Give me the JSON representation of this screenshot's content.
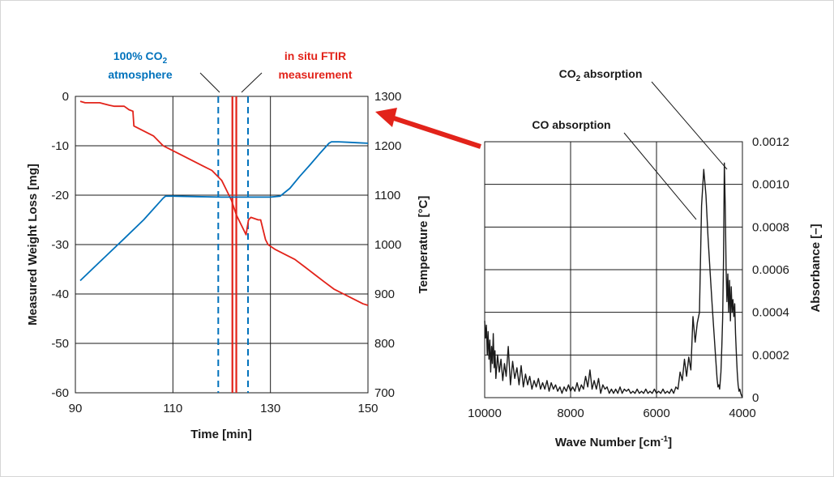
{
  "colors": {
    "weight": "#e2231a",
    "temperature": "#0072bc",
    "absorbance": "#1a1a1a",
    "arrow": "#e2231a",
    "grid": "#1a1a1a"
  },
  "chart_data": [
    {
      "type": "line",
      "xlabel": "Time [min]",
      "ylabel": "Measured Weight Loss [mg]",
      "y2label": "Temperature [°C]",
      "xlim": [
        90,
        150
      ],
      "ylim": [
        -60,
        0
      ],
      "y2lim": [
        700,
        1300
      ],
      "x_ticks": [
        "90",
        "110",
        "130",
        "150"
      ],
      "y_ticks": [
        "0",
        "-10",
        "-20",
        "-30",
        "-40",
        "-50",
        "-60"
      ],
      "y2_ticks": [
        "1300",
        "1200",
        "1100",
        "1000",
        "900",
        "800",
        "700"
      ],
      "grid": true,
      "annotations": {
        "co2_line1": "100% CO",
        "co2_sub": "2",
        "co2_line2": "atmosphere",
        "ftir_line1": "in situ FTIR",
        "ftir_line2": "measurement"
      },
      "co2_markers_x": [
        119.3,
        125.4
      ],
      "ftir_markers_x": [
        122.2,
        123.0
      ],
      "series": [
        {
          "axis": "left",
          "x": [
            91,
            92,
            94,
            95,
            97,
            98,
            100,
            101,
            101.8,
            102,
            104,
            106,
            107,
            108,
            110,
            112,
            114,
            116,
            118,
            120,
            121,
            122,
            123,
            124,
            125,
            125.5,
            126,
            127.5,
            128,
            129,
            129.5,
            131,
            133,
            135,
            137,
            139,
            141,
            143,
            145,
            147,
            149,
            150
          ],
          "y": [
            -1,
            -1.3,
            -1.3,
            -1.3,
            -1.8,
            -2,
            -2,
            -2.7,
            -3,
            -6,
            -7,
            -8,
            -9,
            -10,
            -11,
            -12,
            -13,
            -14,
            -15,
            -17,
            -19,
            -21,
            -24,
            -26,
            -28,
            -25,
            -24.5,
            -25,
            -25,
            -29,
            -30,
            -31,
            -32,
            -33,
            -34.5,
            -36,
            -37.5,
            -39,
            -40,
            -41,
            -42,
            -42.3
          ]
        },
        {
          "axis": "right",
          "x": [
            91,
            95,
            100,
            104,
            108,
            108.5,
            110,
            115,
            120,
            125,
            130,
            132,
            134,
            136,
            138,
            140,
            142,
            142.5,
            144,
            146,
            148,
            150
          ],
          "y": [
            927,
            965,
            1012,
            1050,
            1094,
            1098,
            1098,
            1097,
            1096,
            1096,
            1096,
            1098,
            1114,
            1138,
            1160,
            1183,
            1205,
            1208,
            1208,
            1207,
            1206,
            1205
          ]
        }
      ]
    },
    {
      "type": "line",
      "xlabel_main": "Wave Number [cm",
      "xlabel_sup": "-1",
      "xlabel_end": "]",
      "ylabel": "Absorbance [–]",
      "xlim": [
        10000,
        4000
      ],
      "ylim": [
        0,
        0.0012
      ],
      "x_ticks": [
        "10000",
        "8000",
        "6000",
        "4000"
      ],
      "y_ticks": [
        "0.0012",
        "0.0010",
        "0.0008",
        "0.0006",
        "0.0004",
        "0.0002",
        "0"
      ],
      "grid": true,
      "annotations": {
        "co": "CO absorption",
        "co2_main": "CO",
        "co2_sub": "2",
        "co2_end": " absorption"
      },
      "series": [
        {
          "x": [
            10000,
            9980,
            9960,
            9940,
            9920,
            9900,
            9880,
            9860,
            9840,
            9820,
            9800,
            9780,
            9760,
            9740,
            9700,
            9660,
            9620,
            9580,
            9540,
            9500,
            9450,
            9400,
            9350,
            9300,
            9250,
            9200,
            9150,
            9100,
            9050,
            9000,
            8950,
            8900,
            8850,
            8800,
            8750,
            8700,
            8650,
            8600,
            8550,
            8500,
            8450,
            8400,
            8350,
            8300,
            8250,
            8200,
            8150,
            8100,
            8050,
            8000,
            7950,
            7900,
            7850,
            7800,
            7750,
            7700,
            7650,
            7600,
            7550,
            7500,
            7450,
            7400,
            7350,
            7300,
            7250,
            7200,
            7150,
            7100,
            7050,
            7000,
            6950,
            6900,
            6850,
            6800,
            6750,
            6700,
            6650,
            6600,
            6550,
            6500,
            6450,
            6400,
            6350,
            6300,
            6250,
            6200,
            6150,
            6100,
            6050,
            6000,
            5950,
            5900,
            5850,
            5800,
            5750,
            5700,
            5650,
            5600,
            5550,
            5500,
            5450,
            5400,
            5350,
            5300,
            5250,
            5200,
            5150,
            5100,
            5050,
            5000,
            4950,
            4900,
            4850,
            4800,
            4750,
            4700,
            4660,
            4620,
            4590,
            4570,
            4550,
            4530,
            4500,
            4480,
            4460,
            4440,
            4420,
            4400,
            4380,
            4360,
            4340,
            4320,
            4300,
            4280,
            4260,
            4240,
            4220,
            4200,
            4180,
            4160,
            4140,
            4120,
            4100,
            4080,
            4060,
            4040,
            4020,
            4000
          ],
          "y": [
            0.00036,
            0.00028,
            0.00034,
            0.0002,
            0.00031,
            0.00018,
            0.00027,
            0.00012,
            0.00024,
            0.00016,
            0.0003,
            0.00014,
            0.00022,
            9e-05,
            0.0002,
            0.00012,
            0.00018,
            8e-05,
            0.00016,
            0.0001,
            0.00024,
            6e-05,
            0.00017,
            9e-05,
            0.00014,
            6e-05,
            0.00015,
            5e-05,
            0.00011,
            6e-05,
            0.0001,
            4e-05,
            8e-05,
            5e-05,
            9e-05,
            4e-05,
            7e-05,
            4e-05,
            8e-05,
            3e-05,
            7e-05,
            4e-05,
            6e-05,
            3e-05,
            5e-05,
            2e-05,
            5e-05,
            3e-05,
            6e-05,
            3e-05,
            5e-05,
            3e-05,
            7e-05,
            3e-05,
            6e-05,
            4e-05,
            0.0001,
            5e-05,
            0.00013,
            4e-05,
            8e-05,
            4e-05,
            9e-05,
            2e-05,
            6e-05,
            4e-05,
            5e-05,
            2e-05,
            4e-05,
            2e-05,
            4e-05,
            2e-05,
            5e-05,
            2e-05,
            4e-05,
            3e-05,
            4e-05,
            2e-05,
            3e-05,
            2e-05,
            4e-05,
            2e-05,
            3e-05,
            2e-05,
            4e-05,
            2e-05,
            3e-05,
            2e-05,
            4e-05,
            2e-05,
            3e-05,
            2e-05,
            4e-05,
            2e-05,
            3e-05,
            2e-05,
            4e-05,
            2e-05,
            5e-05,
            4e-05,
            0.00012,
            8e-05,
            0.00018,
            0.0001,
            0.00019,
            0.00013,
            0.00038,
            0.00026,
            0.00035,
            0.0004,
            0.0009,
            0.00107,
            0.00095,
            0.00075,
            0.00058,
            0.00042,
            0.0003,
            0.00018,
            9e-05,
            5e-05,
            6e-05,
            4e-05,
            0.00012,
            0.00024,
            0.00037,
            0.00065,
            0.0011,
            0.0009,
            0.0006,
            0.00045,
            0.00058,
            0.0004,
            0.00055,
            0.00036,
            0.00052,
            0.0004,
            0.00046,
            0.00038,
            0.00044,
            0.0003,
            0.0002,
            0.00012,
            6e-05,
            3e-05,
            4e-05,
            2e-05,
            1e-05,
            0.0
          ]
        }
      ]
    }
  ]
}
